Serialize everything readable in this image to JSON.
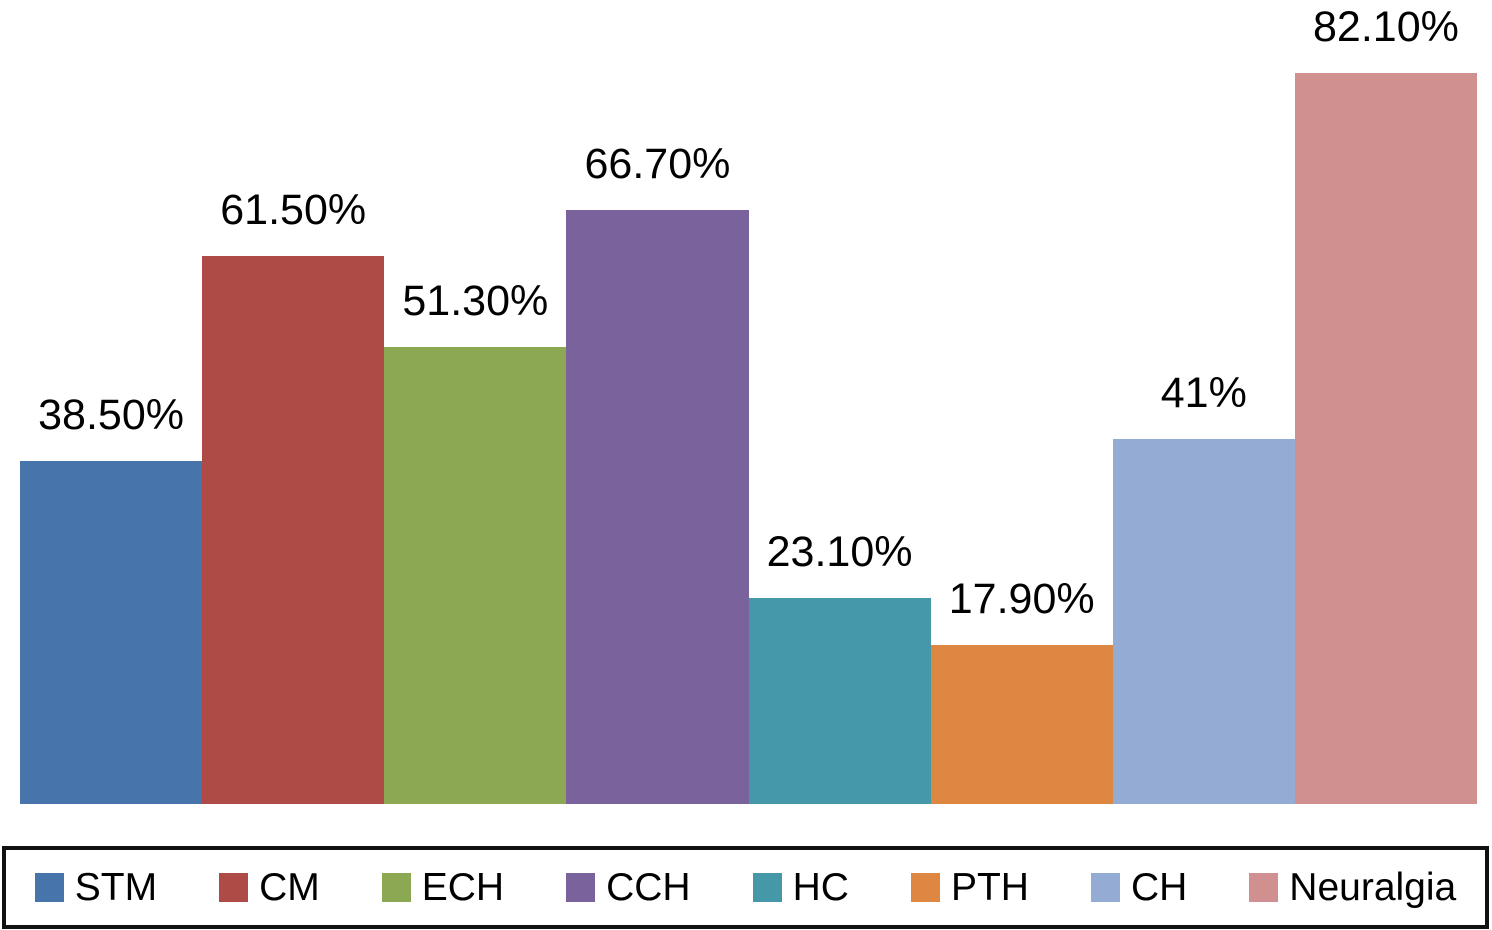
{
  "chart_data": {
    "type": "bar",
    "title": "",
    "xlabel": "",
    "ylabel": "",
    "categories": [
      "STM",
      "CM",
      "ECH",
      "CCH",
      "HC",
      "PTH",
      "CH",
      "Neuralgia"
    ],
    "values": [
      38.5,
      61.5,
      51.3,
      66.7,
      23.1,
      17.9,
      41,
      82.1
    ],
    "value_labels": [
      "38.50%",
      "61.50%",
      "51.30%",
      "66.70%",
      "23.10%",
      "17.90%",
      "41%",
      "82.10%"
    ],
    "colors": [
      "#4674AB",
      "#AE4B47",
      "#8DA853",
      "#7A639C",
      "#4498A8",
      "#DD8742",
      "#94ABD3",
      "#D09090"
    ],
    "ylim": [
      0,
      90.3
    ],
    "grid": false,
    "axes_visible": false,
    "legend": {
      "position": "bottom",
      "border_color": "#111111",
      "background": "#ffffff"
    }
  }
}
